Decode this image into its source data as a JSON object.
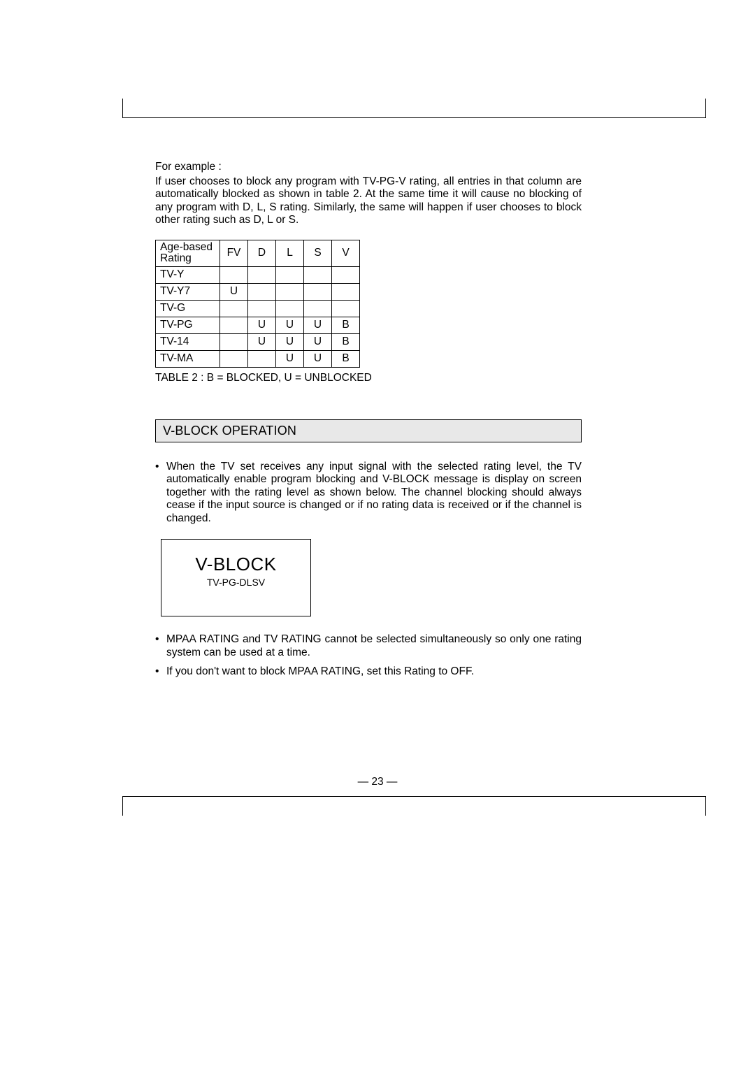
{
  "intro": {
    "lead": "For example :",
    "body": "If user chooses to block any program with TV-PG-V rating, all entries in that column are automatically blocked as shown in table 2. At the same time it will cause no blocking  of any program with D, L, S rating.  Similarly, the same will happen if  user chooses to block other rating such as D, L or S."
  },
  "table": {
    "header_rowlabel": "Age-based Rating",
    "columns": [
      "FV",
      "D",
      "L",
      "S",
      "V"
    ],
    "rows": [
      {
        "label": "TV-Y",
        "cells": [
          "",
          "",
          "",
          "",
          ""
        ]
      },
      {
        "label": "TV-Y7",
        "cells": [
          "U",
          "",
          "",
          "",
          ""
        ]
      },
      {
        "label": "TV-G",
        "cells": [
          "",
          "",
          "",
          "",
          ""
        ]
      },
      {
        "label": "TV-PG",
        "cells": [
          "",
          "U",
          "U",
          "U",
          "B"
        ]
      },
      {
        "label": "TV-14",
        "cells": [
          "",
          "U",
          "U",
          "U",
          "B"
        ]
      },
      {
        "label": "TV-MA",
        "cells": [
          "",
          "",
          "U",
          "U",
          "B"
        ]
      }
    ],
    "caption": "TABLE 2 : B = BLOCKED, U = UNBLOCKED"
  },
  "section_title": "V-BLOCK OPERATION",
  "bullets_top": [
    "When the TV set receives any input signal with the selected rating level, the TV automatically enable program blocking and V-BLOCK message is display on screen together with the rating level as shown below. The channel blocking should always cease if the input source is changed or if no rating data is received or if the channel is changed."
  ],
  "vblock": {
    "title": "V-BLOCK",
    "subtitle": "TV-PG-DLSV"
  },
  "bullets_bottom": [
    "MPAA RATING and TV RATING cannot be selected simultaneously so only one rating system can be used at a time.",
    "If you don't want to block MPAA RATING, set this Rating to OFF."
  ],
  "page_number": "— 23 —"
}
